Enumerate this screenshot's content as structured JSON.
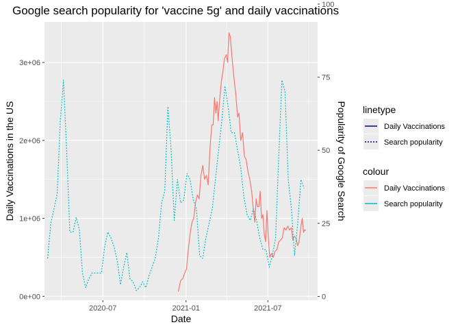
{
  "chart_data": {
    "type": "line",
    "title": "Google search popularity for 'vaccine 5g' and daily vaccinations",
    "xlabel": "Date",
    "ylabel": "Daily Vaccinations in the US",
    "y2label": "Popularity of Google Search",
    "x_ticks": [
      "2020-07-01",
      "2021-01-01",
      "2021-07-01"
    ],
    "x_tick_labels": [
      "2020-07",
      "2021-01",
      "2021-07"
    ],
    "xlim": [
      "2020-02-23",
      "2021-10-19"
    ],
    "y_ticks": [
      0,
      1000000,
      2000000,
      3000000
    ],
    "y_tick_labels": [
      "0e+00",
      "1e+06",
      "2e+06",
      "3e+06"
    ],
    "ylim": [
      -50000,
      3520000
    ],
    "y2_ticks": [
      0,
      25,
      50,
      75,
      100
    ],
    "y2_tick_labels": [
      "0",
      "25",
      "50",
      "75",
      "100"
    ],
    "y2lim": [
      -1.3,
      93.9
    ],
    "grid": true,
    "legend_placement": "right",
    "colors": {
      "panel_bg": "#ebebeb",
      "grid": "#ffffff",
      "vaccinations": "#f8766d",
      "search": "#00bfc4",
      "legend_linetype": "#00008b"
    },
    "series": [
      {
        "name": "Daily Vaccinations",
        "axis": "left",
        "linetype": "solid",
        "color": "#f8766d",
        "points": [
          [
            "2020-12-15",
            60000
          ],
          [
            "2020-12-20",
            200000
          ],
          [
            "2020-12-25",
            230000
          ],
          [
            "2020-12-29",
            300000
          ],
          [
            "2021-01-02",
            350000
          ],
          [
            "2021-01-06",
            600000
          ],
          [
            "2021-01-10",
            800000
          ],
          [
            "2021-01-14",
            950000
          ],
          [
            "2021-01-18",
            1000000
          ],
          [
            "2021-01-22",
            1200000
          ],
          [
            "2021-01-26",
            1300000
          ],
          [
            "2021-01-30",
            1250000
          ],
          [
            "2021-02-03",
            1550000
          ],
          [
            "2021-02-07",
            1680000
          ],
          [
            "2021-02-11",
            1500000
          ],
          [
            "2021-02-15",
            1550000
          ],
          [
            "2021-02-19",
            1430000
          ],
          [
            "2021-02-23",
            1900000
          ],
          [
            "2021-02-27",
            2200000
          ],
          [
            "2021-03-02",
            2200000
          ],
          [
            "2021-03-05",
            2550000
          ],
          [
            "2021-03-08",
            2350000
          ],
          [
            "2021-03-11",
            2500000
          ],
          [
            "2021-03-13",
            2250000
          ],
          [
            "2021-03-16",
            2500000
          ],
          [
            "2021-03-20",
            2750000
          ],
          [
            "2021-03-24",
            2900000
          ],
          [
            "2021-03-27",
            3050000
          ],
          [
            "2021-03-31",
            3100000
          ],
          [
            "2021-04-03",
            3000000
          ],
          [
            "2021-04-06",
            3380000
          ],
          [
            "2021-04-09",
            3330000
          ],
          [
            "2021-04-13",
            3050000
          ],
          [
            "2021-04-17",
            2800000
          ],
          [
            "2021-04-21",
            2600000
          ],
          [
            "2021-04-25",
            2300000
          ],
          [
            "2021-04-28",
            2350000
          ],
          [
            "2021-05-02",
            2000000
          ],
          [
            "2021-05-06",
            2100000
          ],
          [
            "2021-05-10",
            1800000
          ],
          [
            "2021-05-14",
            1750000
          ],
          [
            "2021-05-18",
            1600000
          ],
          [
            "2021-05-22",
            1500000
          ],
          [
            "2021-05-26",
            1350000
          ],
          [
            "2021-05-30",
            1100000
          ],
          [
            "2021-06-02",
            950000
          ],
          [
            "2021-06-05",
            1250000
          ],
          [
            "2021-06-08",
            1150000
          ],
          [
            "2021-06-11",
            1150000
          ],
          [
            "2021-06-14",
            1350000
          ],
          [
            "2021-06-17",
            1000000
          ],
          [
            "2021-06-20",
            1050000
          ],
          [
            "2021-06-23",
            800000
          ],
          [
            "2021-06-26",
            700000
          ],
          [
            "2021-06-29",
            1100000
          ],
          [
            "2021-07-02",
            750000
          ],
          [
            "2021-07-05",
            500000
          ],
          [
            "2021-07-09",
            550000
          ],
          [
            "2021-07-13",
            500000
          ],
          [
            "2021-07-17",
            580000
          ],
          [
            "2021-07-21",
            600000
          ],
          [
            "2021-07-25",
            700000
          ],
          [
            "2021-07-29",
            720000
          ],
          [
            "2021-08-02",
            750000
          ],
          [
            "2021-08-06",
            880000
          ],
          [
            "2021-08-10",
            850000
          ],
          [
            "2021-08-14",
            900000
          ],
          [
            "2021-08-18",
            850000
          ],
          [
            "2021-08-22",
            880000
          ],
          [
            "2021-08-25",
            720000
          ],
          [
            "2021-08-28",
            770000
          ],
          [
            "2021-09-01",
            750000
          ],
          [
            "2021-09-05",
            650000
          ],
          [
            "2021-09-08",
            700000
          ],
          [
            "2021-09-12",
            900000
          ],
          [
            "2021-09-15",
            1000000
          ],
          [
            "2021-09-18",
            820000
          ],
          [
            "2021-09-20",
            850000
          ],
          [
            "2021-09-23",
            850000
          ]
        ]
      },
      {
        "name": "Search popularity",
        "axis": "right",
        "linetype": "dotted",
        "color": "#00bfc4",
        "points": [
          [
            "2020-03-01",
            13
          ],
          [
            "2020-03-08",
            25
          ],
          [
            "2020-03-15",
            30
          ],
          [
            "2020-03-22",
            35
          ],
          [
            "2020-03-29",
            60
          ],
          [
            "2020-04-05",
            74
          ],
          [
            "2020-04-12",
            50
          ],
          [
            "2020-04-19",
            22
          ],
          [
            "2020-04-26",
            22
          ],
          [
            "2020-05-03",
            27
          ],
          [
            "2020-05-10",
            23
          ],
          [
            "2020-05-17",
            8
          ],
          [
            "2020-05-24",
            3
          ],
          [
            "2020-05-31",
            6
          ],
          [
            "2020-06-07",
            8
          ],
          [
            "2020-06-14",
            8
          ],
          [
            "2020-06-21",
            8
          ],
          [
            "2020-06-28",
            8
          ],
          [
            "2020-07-05",
            17
          ],
          [
            "2020-07-12",
            22
          ],
          [
            "2020-07-19",
            20
          ],
          [
            "2020-07-26",
            17
          ],
          [
            "2020-08-02",
            12
          ],
          [
            "2020-08-09",
            4
          ],
          [
            "2020-08-16",
            10
          ],
          [
            "2020-08-23",
            15
          ],
          [
            "2020-08-30",
            6
          ],
          [
            "2020-09-06",
            5
          ],
          [
            "2020-09-13",
            2
          ],
          [
            "2020-09-20",
            3
          ],
          [
            "2020-09-27",
            5
          ],
          [
            "2020-10-04",
            3
          ],
          [
            "2020-10-11",
            7
          ],
          [
            "2020-10-18",
            10
          ],
          [
            "2020-10-25",
            13
          ],
          [
            "2020-11-01",
            20
          ],
          [
            "2020-11-08",
            32
          ],
          [
            "2020-11-15",
            36
          ],
          [
            "2020-11-22",
            65
          ],
          [
            "2020-11-29",
            50
          ],
          [
            "2020-12-06",
            26
          ],
          [
            "2020-12-13",
            40
          ],
          [
            "2020-12-20",
            32
          ],
          [
            "2020-12-27",
            33
          ],
          [
            "2021-01-03",
            42
          ],
          [
            "2021-01-10",
            40
          ],
          [
            "2021-01-17",
            33
          ],
          [
            "2021-01-24",
            30
          ],
          [
            "2021-01-31",
            14
          ],
          [
            "2021-02-07",
            13
          ],
          [
            "2021-02-14",
            20
          ],
          [
            "2021-02-21",
            25
          ],
          [
            "2021-02-28",
            30
          ],
          [
            "2021-03-07",
            40
          ],
          [
            "2021-03-14",
            50
          ],
          [
            "2021-03-21",
            60
          ],
          [
            "2021-03-28",
            72
          ],
          [
            "2021-04-04",
            65
          ],
          [
            "2021-04-11",
            56
          ],
          [
            "2021-04-18",
            56
          ],
          [
            "2021-04-25",
            50
          ],
          [
            "2021-05-02",
            44
          ],
          [
            "2021-05-09",
            34
          ],
          [
            "2021-05-16",
            28
          ],
          [
            "2021-05-23",
            26
          ],
          [
            "2021-05-30",
            30
          ],
          [
            "2021-06-06",
            26
          ],
          [
            "2021-06-13",
            20
          ],
          [
            "2021-06-20",
            16
          ],
          [
            "2021-06-27",
            16
          ],
          [
            "2021-07-04",
            10
          ],
          [
            "2021-07-11",
            14
          ],
          [
            "2021-07-18",
            20
          ],
          [
            "2021-07-25",
            48
          ],
          [
            "2021-08-01",
            74
          ],
          [
            "2021-08-08",
            70
          ],
          [
            "2021-08-15",
            40
          ],
          [
            "2021-08-22",
            30
          ],
          [
            "2021-08-29",
            14
          ],
          [
            "2021-09-05",
            25
          ],
          [
            "2021-09-12",
            40
          ],
          [
            "2021-09-19",
            37
          ]
        ]
      }
    ],
    "legends": [
      {
        "title": "linetype",
        "entries": [
          {
            "label": "Daily Vaccinations",
            "linetype": "solid",
            "color": "#00008b"
          },
          {
            "label": "Search popularity",
            "linetype": "dotted",
            "color": "#00008b"
          }
        ]
      },
      {
        "title": "colour",
        "entries": [
          {
            "label": "Daily Vaccinations",
            "linetype": "solid",
            "color": "#f8766d"
          },
          {
            "label": "Search popularity",
            "linetype": "solid",
            "color": "#00bfc4"
          }
        ]
      }
    ]
  }
}
